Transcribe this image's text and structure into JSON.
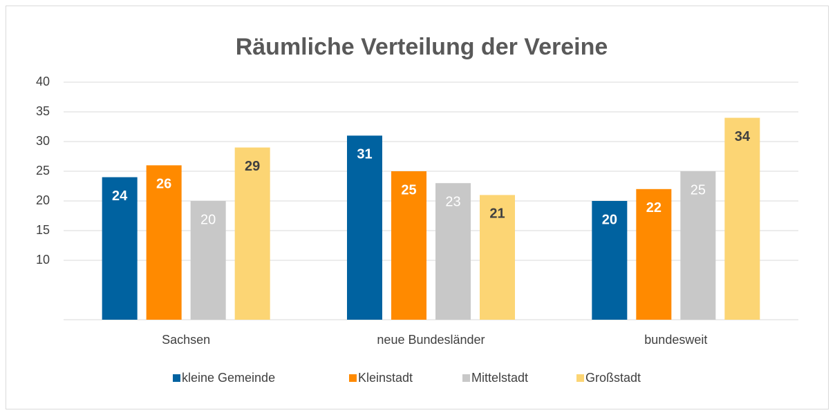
{
  "chart_data": {
    "type": "bar",
    "title": "Räumliche Verteilung der Vereine",
    "categories": [
      "Sachsen",
      "neue Bundesländer",
      "bundesweit"
    ],
    "series": [
      {
        "name": "kleine Gemeinde",
        "color": "#0062a0",
        "values": [
          24,
          31,
          20
        ]
      },
      {
        "name": "Kleinstadt",
        "color": "#ff8a00",
        "values": [
          26,
          25,
          22
        ]
      },
      {
        "name": "Mittelstadt",
        "color": "#c8c8c8",
        "values": [
          20,
          23,
          25
        ]
      },
      {
        "name": "Großstadt",
        "color": "#fcd574",
        "values": [
          29,
          21,
          34
        ]
      }
    ],
    "ylim": [
      0,
      40
    ],
    "yticks": [
      10,
      15,
      20,
      25,
      30,
      35,
      40
    ],
    "grid": true,
    "legend": "bottom"
  }
}
